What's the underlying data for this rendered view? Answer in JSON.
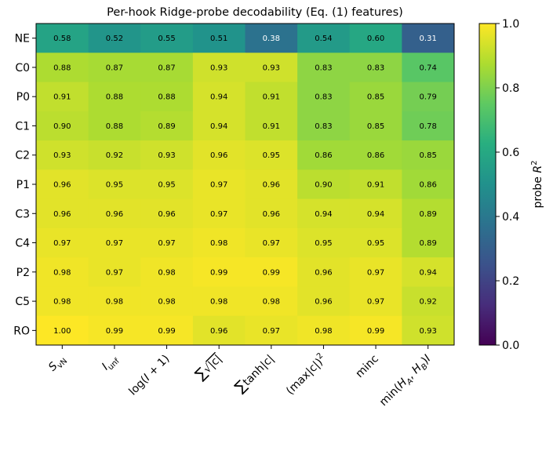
{
  "chart_data": {
    "type": "heatmap",
    "title": "Per-hook Ridge-probe decodability (Eq. (1) features)",
    "rows": [
      "NE",
      "C0",
      "P0",
      "C1",
      "C2",
      "P1",
      "C3",
      "C4",
      "P2",
      "C5",
      "RO"
    ],
    "columns": [
      "S_vN",
      "I_unf",
      "log(I+1)",
      "∑√|c|",
      "∑tanh|c|",
      "(max|c|)²",
      "minc",
      "min(H_A, H_B)I"
    ],
    "values": [
      [
        0.58,
        0.52,
        0.55,
        0.51,
        0.38,
        0.54,
        0.6,
        0.31
      ],
      [
        0.88,
        0.87,
        0.87,
        0.93,
        0.93,
        0.83,
        0.83,
        0.74
      ],
      [
        0.91,
        0.88,
        0.88,
        0.94,
        0.91,
        0.83,
        0.85,
        0.79
      ],
      [
        0.9,
        0.88,
        0.89,
        0.94,
        0.91,
        0.83,
        0.85,
        0.78
      ],
      [
        0.93,
        0.92,
        0.93,
        0.96,
        0.95,
        0.86,
        0.86,
        0.85
      ],
      [
        0.96,
        0.95,
        0.95,
        0.97,
        0.96,
        0.9,
        0.91,
        0.86
      ],
      [
        0.96,
        0.96,
        0.96,
        0.97,
        0.96,
        0.94,
        0.94,
        0.89
      ],
      [
        0.97,
        0.97,
        0.97,
        0.98,
        0.97,
        0.95,
        0.95,
        0.89
      ],
      [
        0.98,
        0.97,
        0.98,
        0.99,
        0.99,
        0.96,
        0.97,
        0.94
      ],
      [
        0.98,
        0.98,
        0.98,
        0.98,
        0.98,
        0.96,
        0.97,
        0.92
      ],
      [
        1.0,
        0.99,
        0.99,
        0.96,
        0.97,
        0.98,
        0.99,
        0.93
      ]
    ],
    "value_format": "2 decimals",
    "colormap": "viridis",
    "colorbar": {
      "label": "probe R²",
      "range": [
        0.0,
        1.0
      ],
      "ticks": [
        "0.0",
        "0.2",
        "0.4",
        "0.6",
        "0.8",
        "1.0"
      ]
    }
  }
}
